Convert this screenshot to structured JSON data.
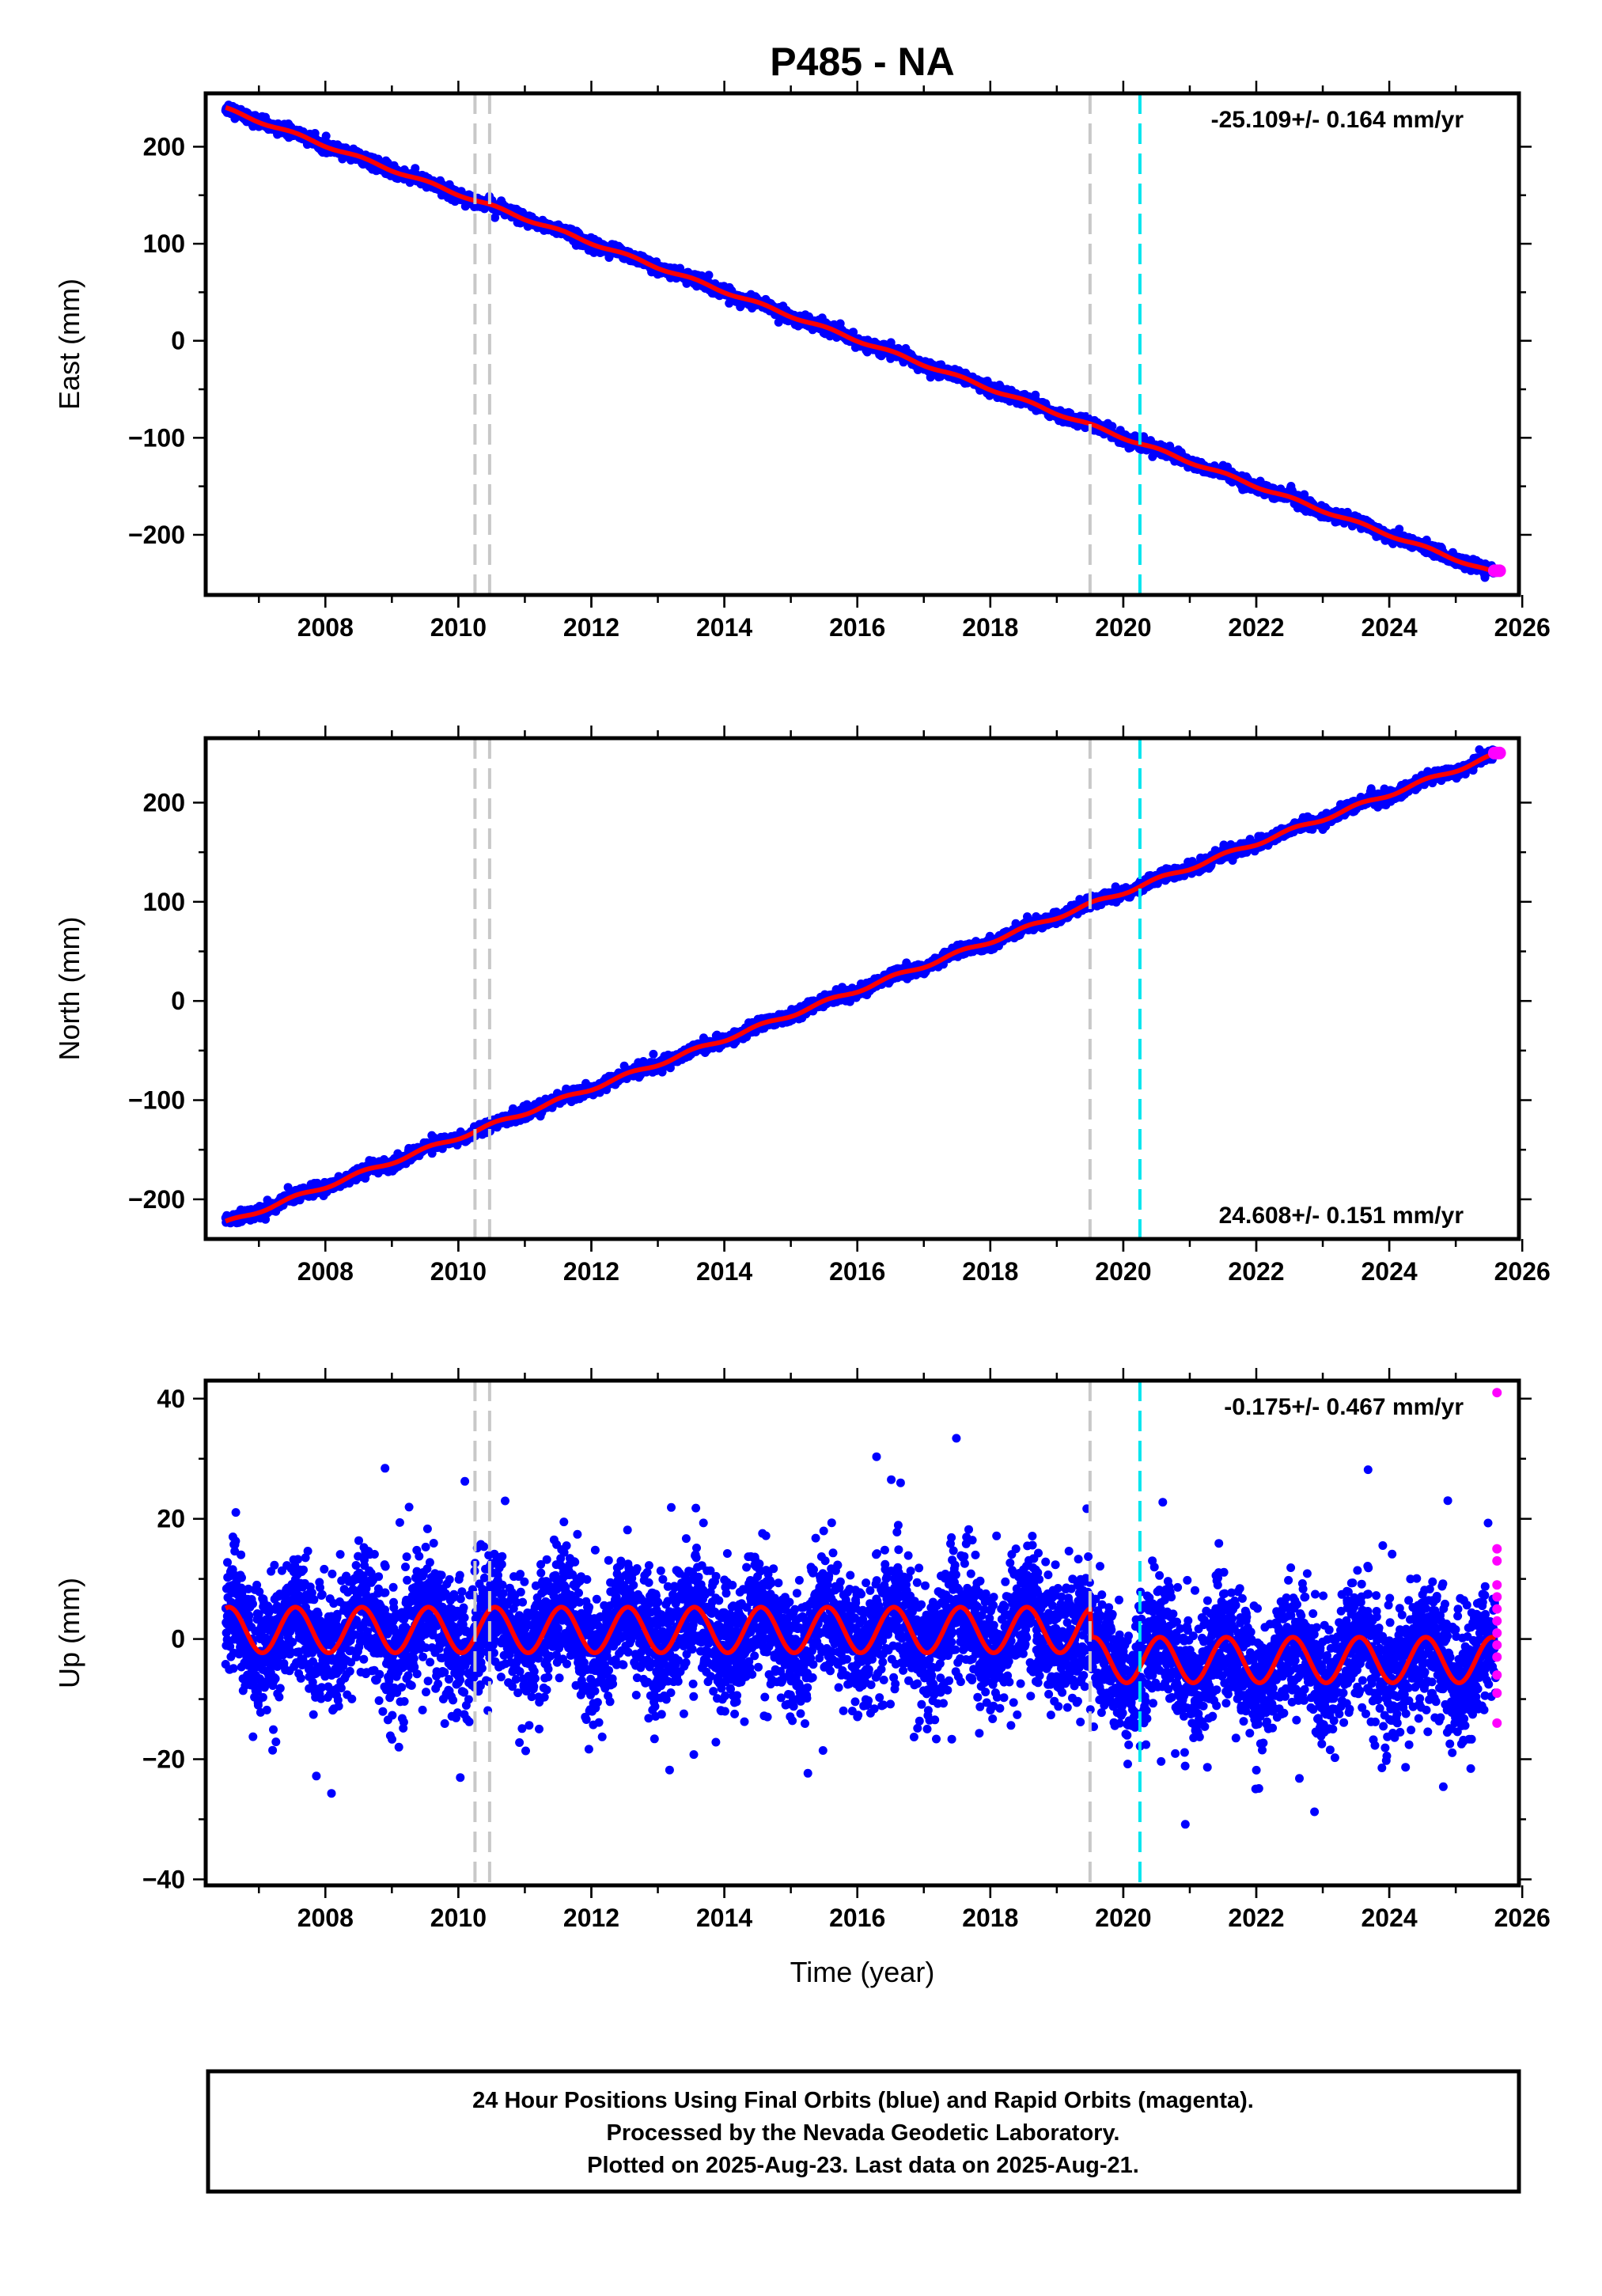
{
  "title": "P485 - NA",
  "colors": {
    "final_orbits": "#0000ff",
    "rapid_orbits": "#ff00ff",
    "model": "#ff0000",
    "equipment_change": "#c8c8c8",
    "earthquake": "#00e5ee"
  },
  "x_axis": {
    "label": "Time (year)",
    "range": [
      2006.2,
      2025.95
    ],
    "ticks": [
      "2008",
      "2010",
      "2012",
      "2014",
      "2016",
      "2018",
      "2020",
      "2022",
      "2024",
      "2026"
    ]
  },
  "vertical_lines": {
    "gray": [
      2010.25,
      2010.47,
      2019.5
    ],
    "cyan": [
      2020.25
    ]
  },
  "footer": {
    "line1": "24 Hour Positions Using Final Orbits (blue) and Rapid Orbits (magenta).",
    "line2": "Processed by the Nevada Geodetic Laboratory.",
    "line3": "Plotted on 2025-Aug-23. Last data on 2025-Aug-21."
  },
  "chart_data": [
    {
      "type": "scatter",
      "name": "east",
      "ylabel": "East (mm)",
      "ylim": [
        -262,
        255
      ],
      "yticks": [
        "200",
        "100",
        "0",
        "−100",
        "−200"
      ],
      "ytick_values": [
        200,
        100,
        0,
        -100,
        -200
      ],
      "rate_text": "-25.109+/- 0.164 mm/yr",
      "rate_position": "top-right",
      "start_year": 2006.5,
      "end_year": 2025.6,
      "start_value": 239,
      "end_value": -240,
      "annual_amplitude": 1.5,
      "noise_mm": 3,
      "rapid_value": -237
    },
    {
      "type": "scatter",
      "name": "north",
      "ylabel": "North (mm)",
      "ylim": [
        -240,
        265
      ],
      "yticks": [
        "200",
        "100",
        "0",
        "−100",
        "−200"
      ],
      "ytick_values": [
        200,
        100,
        0,
        -100,
        -200
      ],
      "rate_text": "24.608+/- 0.151 mm/yr",
      "rate_position": "bottom-right",
      "start_year": 2006.5,
      "end_year": 2025.6,
      "start_value": -224,
      "end_value": 248,
      "annual_amplitude": 2,
      "noise_mm": 3,
      "rapid_value": 250
    },
    {
      "type": "scatter",
      "name": "up",
      "ylabel": "Up (mm)",
      "ylim": [
        -41,
        43
      ],
      "yticks": [
        "40",
        "20",
        "0",
        "−20",
        "−40"
      ],
      "ytick_values": [
        40,
        20,
        0,
        -20,
        -40
      ],
      "rate_text": "-0.175+/- 0.467 mm/yr",
      "rate_position": "top-right",
      "start_year": 2006.5,
      "end_year": 2025.6,
      "model_offset_before_2019_5": 1.5,
      "model_offset_after_2019_5": -3.5,
      "annual_amplitude": 3.8,
      "noise_mm": 5,
      "rapid_values": [
        41,
        15,
        13,
        9,
        7,
        5,
        3,
        1,
        -1,
        -3,
        -6,
        -9,
        -14
      ]
    }
  ]
}
